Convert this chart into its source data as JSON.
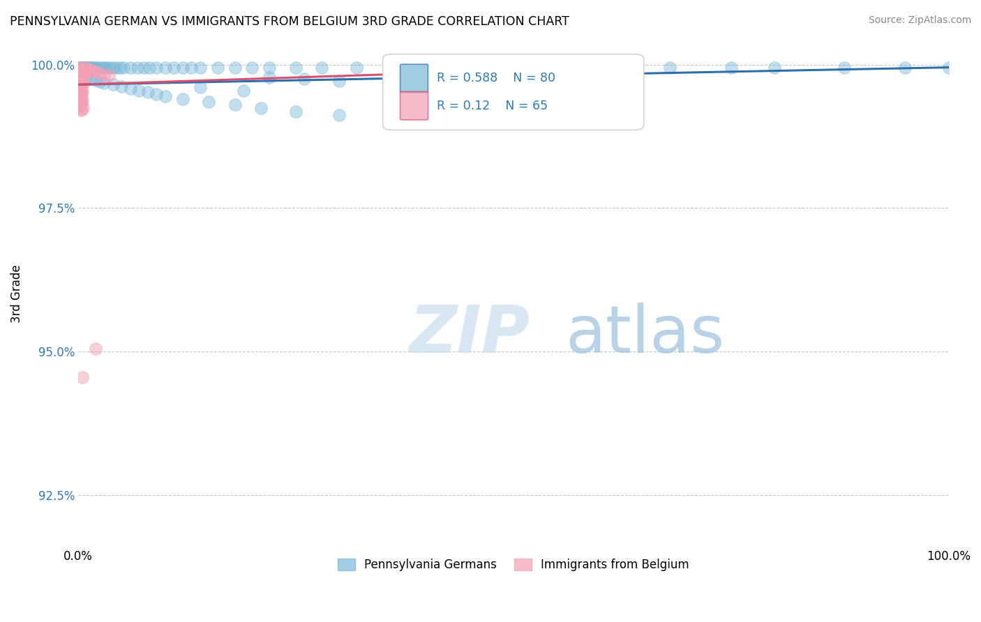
{
  "title": "PENNSYLVANIA GERMAN VS IMMIGRANTS FROM BELGIUM 3RD GRADE CORRELATION CHART",
  "source": "Source: ZipAtlas.com",
  "ylabel": "3rd Grade",
  "xlim": [
    0.0,
    1.0
  ],
  "ylim": [
    0.916,
    1.004
  ],
  "yticks": [
    0.925,
    0.95,
    0.975,
    1.0
  ],
  "ytick_labels": [
    "92.5%",
    "95.0%",
    "97.5%",
    "100.0%"
  ],
  "xticks": [
    0.0,
    1.0
  ],
  "xtick_labels": [
    "0.0%",
    "100.0%"
  ],
  "blue_R": 0.588,
  "blue_N": 80,
  "pink_R": 0.12,
  "pink_N": 65,
  "blue_color": "#7ab8d9",
  "pink_color": "#f4a0b5",
  "blue_line_color": "#2c6fad",
  "pink_line_color": "#d94f6e",
  "blue_scatter": [
    [
      0.001,
      0.9995
    ],
    [
      0.002,
      0.9995
    ],
    [
      0.003,
      0.9995
    ],
    [
      0.004,
      0.9995
    ],
    [
      0.005,
      0.9995
    ],
    [
      0.006,
      0.9995
    ],
    [
      0.007,
      0.9995
    ],
    [
      0.008,
      0.9995
    ],
    [
      0.009,
      0.9995
    ],
    [
      0.01,
      0.9995
    ],
    [
      0.011,
      0.9995
    ],
    [
      0.012,
      0.9995
    ],
    [
      0.013,
      0.9995
    ],
    [
      0.014,
      0.9995
    ],
    [
      0.015,
      0.9995
    ],
    [
      0.016,
      0.9995
    ],
    [
      0.018,
      0.9995
    ],
    [
      0.02,
      0.9995
    ],
    [
      0.022,
      0.9995
    ],
    [
      0.025,
      0.9995
    ],
    [
      0.028,
      0.9995
    ],
    [
      0.03,
      0.9995
    ],
    [
      0.033,
      0.9995
    ],
    [
      0.036,
      0.9995
    ],
    [
      0.04,
      0.9995
    ],
    [
      0.044,
      0.9995
    ],
    [
      0.048,
      0.9995
    ],
    [
      0.052,
      0.9995
    ],
    [
      0.06,
      0.9995
    ],
    [
      0.068,
      0.9995
    ],
    [
      0.075,
      0.9995
    ],
    [
      0.082,
      0.9995
    ],
    [
      0.09,
      0.9995
    ],
    [
      0.1,
      0.9995
    ],
    [
      0.11,
      0.9995
    ],
    [
      0.12,
      0.9995
    ],
    [
      0.13,
      0.9995
    ],
    [
      0.14,
      0.9995
    ],
    [
      0.16,
      0.9995
    ],
    [
      0.18,
      0.9995
    ],
    [
      0.2,
      0.9995
    ],
    [
      0.22,
      0.9995
    ],
    [
      0.25,
      0.9995
    ],
    [
      0.28,
      0.9995
    ],
    [
      0.32,
      0.9995
    ],
    [
      0.36,
      0.9995
    ],
    [
      0.4,
      0.9995
    ],
    [
      0.45,
      0.9995
    ],
    [
      0.5,
      0.9995
    ],
    [
      0.55,
      0.9995
    ],
    [
      0.6,
      0.9995
    ],
    [
      0.68,
      0.9995
    ],
    [
      0.75,
      0.9995
    ],
    [
      0.8,
      0.9995
    ],
    [
      0.88,
      0.9995
    ],
    [
      0.95,
      0.9995
    ],
    [
      1.0,
      0.9995
    ],
    [
      0.005,
      0.998
    ],
    [
      0.01,
      0.9978
    ],
    [
      0.015,
      0.9975
    ],
    [
      0.02,
      0.9973
    ],
    [
      0.025,
      0.997
    ],
    [
      0.03,
      0.9968
    ],
    [
      0.04,
      0.9965
    ],
    [
      0.05,
      0.9962
    ],
    [
      0.06,
      0.9958
    ],
    [
      0.07,
      0.9955
    ],
    [
      0.08,
      0.9952
    ],
    [
      0.09,
      0.9948
    ],
    [
      0.1,
      0.9945
    ],
    [
      0.12,
      0.994
    ],
    [
      0.15,
      0.9935
    ],
    [
      0.18,
      0.993
    ],
    [
      0.21,
      0.9924
    ],
    [
      0.25,
      0.9918
    ],
    [
      0.3,
      0.9912
    ],
    [
      0.22,
      0.9978
    ],
    [
      0.26,
      0.9975
    ],
    [
      0.3,
      0.9972
    ],
    [
      0.14,
      0.996
    ],
    [
      0.19,
      0.9955
    ]
  ],
  "pink_scatter": [
    [
      0.001,
      0.9995
    ],
    [
      0.002,
      0.9993
    ],
    [
      0.003,
      0.9992
    ],
    [
      0.004,
      0.9991
    ],
    [
      0.005,
      0.999
    ],
    [
      0.006,
      0.9989
    ],
    [
      0.003,
      0.9988
    ],
    [
      0.002,
      0.9987
    ],
    [
      0.001,
      0.9986
    ],
    [
      0.004,
      0.9985
    ],
    [
      0.005,
      0.9984
    ],
    [
      0.006,
      0.9983
    ],
    [
      0.002,
      0.9982
    ],
    [
      0.003,
      0.9981
    ],
    [
      0.001,
      0.998
    ],
    [
      0.004,
      0.9979
    ],
    [
      0.005,
      0.9978
    ],
    [
      0.002,
      0.9977
    ],
    [
      0.003,
      0.9976
    ],
    [
      0.001,
      0.9975
    ],
    [
      0.006,
      0.9974
    ],
    [
      0.002,
      0.9973
    ],
    [
      0.001,
      0.9972
    ],
    [
      0.004,
      0.9971
    ],
    [
      0.003,
      0.997
    ],
    [
      0.005,
      0.9969
    ],
    [
      0.002,
      0.9968
    ],
    [
      0.001,
      0.9967
    ],
    [
      0.006,
      0.9966
    ],
    [
      0.003,
      0.9965
    ],
    [
      0.002,
      0.9964
    ],
    [
      0.004,
      0.9963
    ],
    [
      0.008,
      0.9995
    ],
    [
      0.01,
      0.9993
    ],
    [
      0.012,
      0.9991
    ],
    [
      0.015,
      0.999
    ],
    [
      0.018,
      0.9988
    ],
    [
      0.02,
      0.9987
    ],
    [
      0.025,
      0.9985
    ],
    [
      0.03,
      0.9983
    ],
    [
      0.035,
      0.9981
    ],
    [
      0.001,
      0.996
    ],
    [
      0.002,
      0.9958
    ],
    [
      0.003,
      0.9956
    ],
    [
      0.004,
      0.9954
    ],
    [
      0.005,
      0.9952
    ],
    [
      0.002,
      0.995
    ],
    [
      0.001,
      0.9948
    ],
    [
      0.003,
      0.9946
    ],
    [
      0.002,
      0.9944
    ],
    [
      0.004,
      0.9942
    ],
    [
      0.003,
      0.994
    ],
    [
      0.005,
      0.9938
    ],
    [
      0.002,
      0.9936
    ],
    [
      0.001,
      0.9934
    ],
    [
      0.004,
      0.9932
    ],
    [
      0.003,
      0.993
    ],
    [
      0.002,
      0.9928
    ],
    [
      0.001,
      0.9926
    ],
    [
      0.006,
      0.9924
    ],
    [
      0.004,
      0.9922
    ],
    [
      0.003,
      0.992
    ],
    [
      0.02,
      0.9505
    ],
    [
      0.005,
      0.9455
    ]
  ],
  "watermark_zip": "ZIP",
  "watermark_atlas": "atlas",
  "legend_label_blue": "Pennsylvania Germans",
  "legend_label_pink": "Immigrants from Belgium"
}
